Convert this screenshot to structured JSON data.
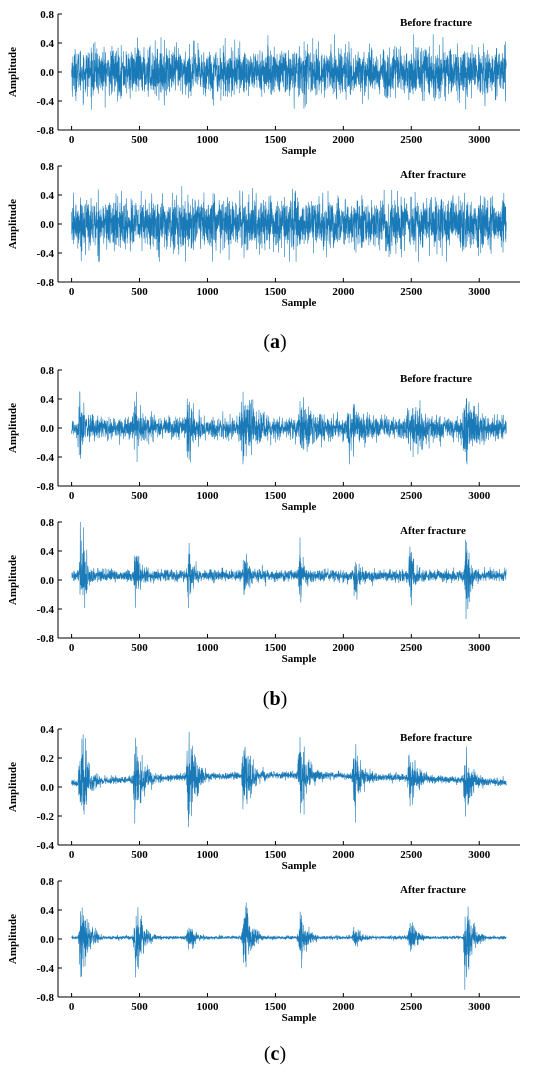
{
  "colors": {
    "signal": "#1a7ab8",
    "axis": "#000000",
    "background": "#ffffff"
  },
  "groups": [
    {
      "label": "(",
      "letter": "a",
      "close": ")"
    },
    {
      "label": "(",
      "letter": "b",
      "close": ")"
    },
    {
      "label": "(",
      "letter": "c",
      "close": ")"
    }
  ],
  "chart_data": [
    {
      "id": "a-before",
      "type": "line",
      "annotation": "Before fracture",
      "xlabel": "Sample",
      "ylabel": "Amplitude",
      "xlim": [
        -100,
        3300
      ],
      "ylim": [
        -0.8,
        0.8
      ],
      "xticks": [
        0,
        500,
        1000,
        1500,
        2000,
        2500,
        3000
      ],
      "yticks": [
        -0.8,
        -0.4,
        0.0,
        0.4,
        0.8
      ],
      "ytick_labels": [
        "-0.8",
        "-0.4",
        "0.0",
        "0.4",
        "0.8"
      ],
      "n_samples": 3200,
      "signal": {
        "kind": "noise",
        "base": 0.0,
        "std": 0.16,
        "clip": 0.52,
        "bursts": []
      }
    },
    {
      "id": "a-after",
      "type": "line",
      "annotation": "After fracture",
      "xlabel": "Sample",
      "ylabel": "Amplitude",
      "xlim": [
        -100,
        3300
      ],
      "ylim": [
        -0.8,
        0.8
      ],
      "xticks": [
        0,
        500,
        1000,
        1500,
        2000,
        2500,
        3000
      ],
      "yticks": [
        -0.8,
        -0.4,
        0.0,
        0.4,
        0.8
      ],
      "ytick_labels": [
        "-0.8",
        "-0.4",
        "0.0",
        "0.4",
        "0.8"
      ],
      "n_samples": 3200,
      "signal": {
        "kind": "noise",
        "base": 0.0,
        "std": 0.17,
        "clip": 0.52,
        "bursts": []
      }
    },
    {
      "id": "b-before",
      "type": "line",
      "annotation": "Before fracture",
      "xlabel": "Sample",
      "ylabel": "Amplitude",
      "xlim": [
        -100,
        3300
      ],
      "ylim": [
        -0.8,
        0.8
      ],
      "xticks": [
        0,
        500,
        1000,
        1500,
        2000,
        2500,
        3000
      ],
      "yticks": [
        -0.8,
        -0.4,
        0.0,
        0.4,
        0.8
      ],
      "ytick_labels": [
        "-0.8",
        "-0.4",
        "0.0",
        "0.4",
        "0.8"
      ],
      "n_samples": 3200,
      "signal": {
        "kind": "bursts",
        "base": 0.0,
        "std": 0.07,
        "clip": 0.5,
        "bursts": [
          {
            "center": 60,
            "amp": 0.45,
            "width": 60
          },
          {
            "center": 470,
            "amp": 0.35,
            "width": 80
          },
          {
            "center": 860,
            "amp": 0.4,
            "width": 70
          },
          {
            "center": 1270,
            "amp": 0.45,
            "width": 120
          },
          {
            "center": 1700,
            "amp": 0.3,
            "width": 150
          },
          {
            "center": 2050,
            "amp": 0.3,
            "width": 120
          },
          {
            "center": 2500,
            "amp": 0.35,
            "width": 150
          },
          {
            "center": 2900,
            "amp": 0.45,
            "width": 100
          }
        ]
      }
    },
    {
      "id": "b-after",
      "type": "line",
      "annotation": "After fracture",
      "xlabel": "Sample",
      "ylabel": "Amplitude",
      "xlim": [
        -100,
        3300
      ],
      "ylim": [
        -0.8,
        0.8
      ],
      "xticks": [
        0,
        500,
        1000,
        1500,
        2000,
        2500,
        3000
      ],
      "yticks": [
        -0.8,
        -0.4,
        0.0,
        0.4,
        0.8
      ],
      "ytick_labels": [
        "-0.8",
        "-0.4",
        "0.0",
        "0.4",
        "0.8"
      ],
      "n_samples": 3200,
      "signal": {
        "kind": "bursts",
        "base": 0.06,
        "std": 0.04,
        "clip": 0.8,
        "bursts": [
          {
            "center": 70,
            "amp": 0.75,
            "width": 35
          },
          {
            "center": 470,
            "amp": 0.45,
            "width": 35
          },
          {
            "center": 860,
            "amp": 0.4,
            "width": 35
          },
          {
            "center": 1270,
            "amp": 0.42,
            "width": 35
          },
          {
            "center": 1680,
            "amp": 0.35,
            "width": 35
          },
          {
            "center": 2080,
            "amp": 0.3,
            "width": 35
          },
          {
            "center": 2490,
            "amp": 0.4,
            "width": 35
          },
          {
            "center": 2900,
            "amp": 0.55,
            "width": 35
          }
        ]
      }
    },
    {
      "id": "c-before",
      "type": "line",
      "annotation": "Before fracture",
      "xlabel": "Sample",
      "ylabel": "Amplitude",
      "xlim": [
        -100,
        3300
      ],
      "ylim": [
        -0.4,
        0.4
      ],
      "xticks": [
        0,
        500,
        1000,
        1500,
        2000,
        2500,
        3000
      ],
      "yticks": [
        -0.4,
        -0.2,
        0.0,
        0.2,
        0.4
      ],
      "ytick_labels": [
        "-0.4",
        "-0.2",
        "0.0",
        "0.2",
        "0.4"
      ],
      "n_samples": 3200,
      "signal": {
        "kind": "bursts",
        "base": 0.03,
        "std": 0.012,
        "clip": 0.38,
        "trend": 0.05,
        "bursts": [
          {
            "center": 70,
            "amp": 0.32,
            "width": 60
          },
          {
            "center": 470,
            "amp": 0.27,
            "width": 60
          },
          {
            "center": 860,
            "amp": 0.28,
            "width": 60
          },
          {
            "center": 1270,
            "amp": 0.27,
            "width": 60
          },
          {
            "center": 1680,
            "amp": 0.27,
            "width": 60
          },
          {
            "center": 2080,
            "amp": 0.2,
            "width": 60
          },
          {
            "center": 2490,
            "amp": 0.18,
            "width": 60
          },
          {
            "center": 2900,
            "amp": 0.2,
            "width": 60
          }
        ]
      }
    },
    {
      "id": "c-after",
      "type": "line",
      "annotation": "After fracture",
      "xlabel": "Sample",
      "ylabel": "Amplitude",
      "xlim": [
        -100,
        3300
      ],
      "ylim": [
        -0.8,
        0.8
      ],
      "xticks": [
        0,
        500,
        1000,
        1500,
        2000,
        2500,
        3000
      ],
      "yticks": [
        -0.8,
        -0.4,
        0.0,
        0.4,
        0.8
      ],
      "ytick_labels": [
        "-0.8",
        "-0.4",
        "0.0",
        "0.4",
        "0.8"
      ],
      "n_samples": 3200,
      "signal": {
        "kind": "bursts",
        "base": 0.02,
        "std": 0.012,
        "clip": 0.7,
        "bursts": [
          {
            "center": 70,
            "amp": 0.65,
            "width": 50
          },
          {
            "center": 470,
            "amp": 0.58,
            "width": 50
          },
          {
            "center": 860,
            "amp": 0.2,
            "width": 50
          },
          {
            "center": 1270,
            "amp": 0.55,
            "width": 50
          },
          {
            "center": 1680,
            "amp": 0.35,
            "width": 50
          },
          {
            "center": 2080,
            "amp": 0.15,
            "width": 50
          },
          {
            "center": 2490,
            "amp": 0.25,
            "width": 50
          },
          {
            "center": 2900,
            "amp": 0.5,
            "width": 50
          }
        ]
      }
    }
  ]
}
